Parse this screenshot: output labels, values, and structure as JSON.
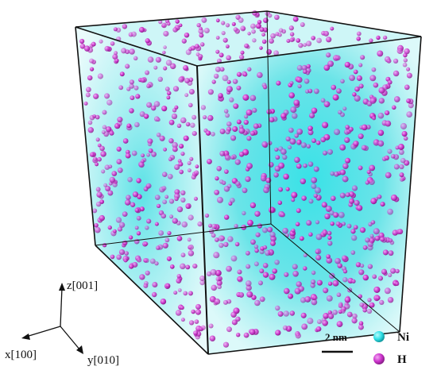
{
  "figure": {
    "species": [
      {
        "symbol": "Ni",
        "color": "#2ee0e6"
      },
      {
        "symbol": "H",
        "color": "#cc33cc"
      }
    ],
    "axes": {
      "z_label": "z[001]",
      "x_label": "x[100]",
      "y_label": "y[010]"
    },
    "scale_bar": {
      "label": "2 nm"
    },
    "colors": {
      "nickel": "#2ee0e6",
      "hydrogen": "#cc33cc",
      "edges": "#111111"
    }
  }
}
